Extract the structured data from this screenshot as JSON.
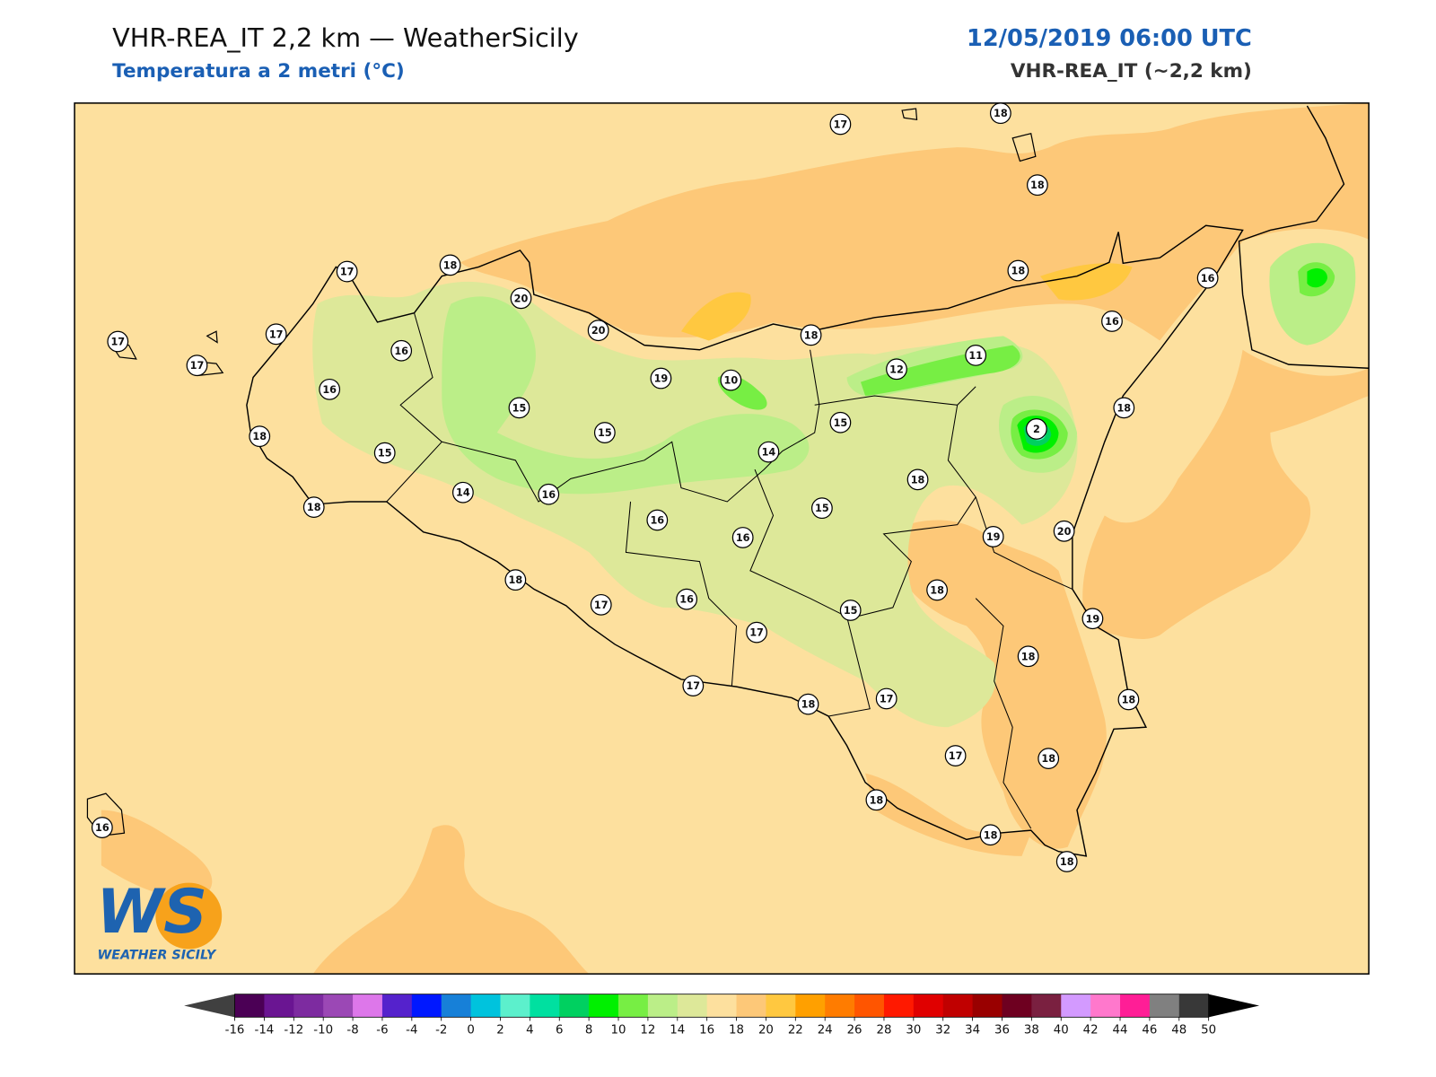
{
  "header": {
    "title": "VHR-REA_IT 2,2 km — WeatherSicily",
    "subtitle": "Temperatura a 2 metri (°C)",
    "datetime": "12/05/2019 06:00 UTC",
    "model": "VHR-REA_IT (~2,2 km)"
  },
  "map": {
    "stations": [
      17,
      18,
      18,
      17,
      18,
      20,
      17,
      17,
      17,
      16,
      20,
      18,
      18,
      16,
      16,
      16,
      19,
      10,
      12,
      11,
      15,
      15,
      15,
      2,
      18,
      18,
      15,
      14,
      14,
      16,
      18,
      18,
      16,
      16,
      15,
      19,
      20,
      18,
      17,
      16,
      18,
      15,
      19,
      17,
      18,
      17,
      18,
      17,
      18,
      17,
      18,
      18,
      18,
      18,
      16
    ]
  },
  "logo": {
    "mark": "WS",
    "name": "WEATHER SICILY"
  },
  "colorbar": {
    "ticks": [
      -16,
      -14,
      -12,
      -10,
      -8,
      -6,
      -4,
      -2,
      0,
      2,
      4,
      6,
      8,
      10,
      12,
      14,
      16,
      18,
      20,
      22,
      24,
      26,
      28,
      30,
      32,
      34,
      36,
      38,
      40,
      42,
      44,
      46,
      48,
      50
    ],
    "colors": [
      "#4b0055",
      "#6a1592",
      "#7d2ba0",
      "#9b48b5",
      "#dd77ea",
      "#5522cc",
      "#0018ff",
      "#1780d8",
      "#00c3dd",
      "#5cf0cc",
      "#00e0a0",
      "#00d060",
      "#00f000",
      "#77ee44",
      "#bbee88",
      "#dde899",
      "#fde09e",
      "#fdc878",
      "#ffc840",
      "#ffa000",
      "#ff7c00",
      "#ff5500",
      "#ff1900",
      "#e00000",
      "#c00000",
      "#990000",
      "#6e0020",
      "#7a2040",
      "#d39aff",
      "#ff78cc",
      "#ff1e96",
      "#808080",
      "#383838"
    ],
    "under_color": "#404040",
    "over_color": "#000000"
  }
}
